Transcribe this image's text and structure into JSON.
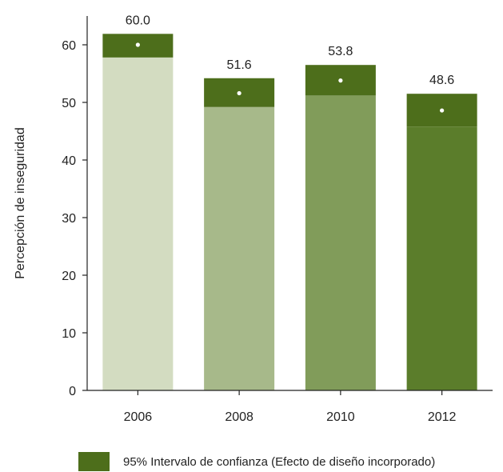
{
  "chart_data": {
    "type": "bar",
    "categories": [
      "2006",
      "2008",
      "2010",
      "2012"
    ],
    "values": [
      60.0,
      51.6,
      53.8,
      48.6
    ],
    "value_labels": [
      "60.0",
      "51.6",
      "53.8",
      "48.6"
    ],
    "ci_lower": [
      57.8,
      49.2,
      51.2,
      45.8
    ],
    "ci_upper": [
      61.9,
      54.2,
      56.5,
      51.5
    ],
    "bar_colors": [
      "#d3dcc1",
      "#a7b98a",
      "#819c5a",
      "#5b7d2b"
    ],
    "ci_color": "#4d6e1b",
    "point_color": "#ffffff",
    "ylabel": "Percepción de inseguridad",
    "xlabel": "",
    "ylim": [
      0,
      65
    ],
    "yticks": [
      "0",
      "10",
      "20",
      "30",
      "40",
      "50",
      "60"
    ],
    "grid": false,
    "legend_position": "bottom-right"
  },
  "legend": {
    "label": "95% Intervalo de confianza (Efecto de diseño incorporado)"
  }
}
